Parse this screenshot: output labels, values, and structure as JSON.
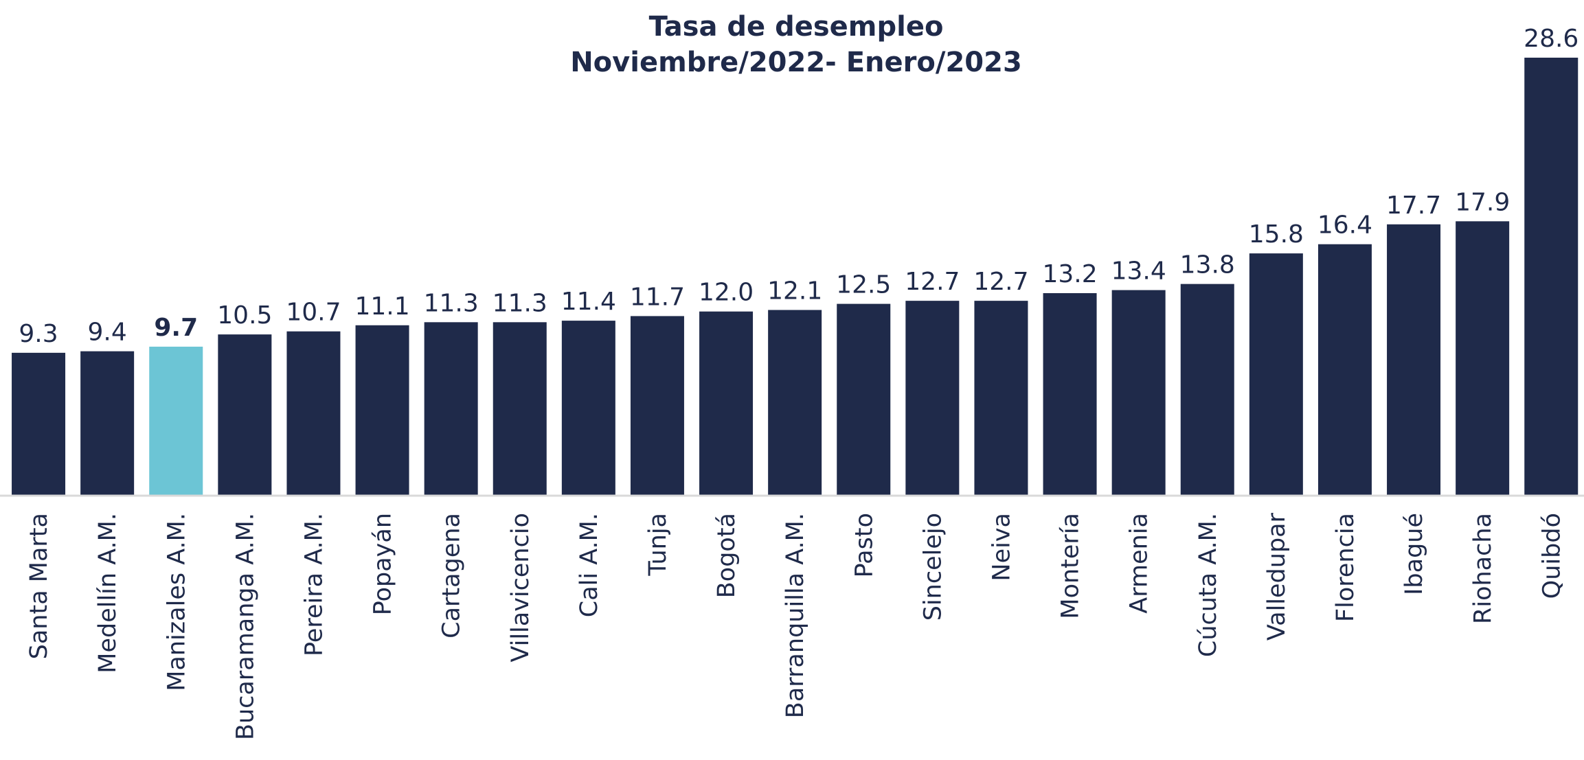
{
  "chart_data": {
    "type": "bar",
    "title": "Tasa de desempleo",
    "subtitle": "Noviembre/2022- Enero/2023",
    "categories": [
      "Santa Marta",
      "Medellín A.M.",
      "Manizales A.M.",
      "Bucaramanga A.M.",
      "Pereira A.M.",
      "Popayán",
      "Cartagena",
      "Villavicencio",
      "Cali A.M.",
      "Tunja",
      "Bogotá",
      "Barranquilla A.M.",
      "Pasto",
      "Sincelejo",
      "Neiva",
      "Montería",
      "Armenia",
      "Cúcuta A.M.",
      "Valledupar",
      "Florencia",
      "Ibagué",
      "Riohacha",
      "Quibdó"
    ],
    "values": [
      9.3,
      9.4,
      9.7,
      10.5,
      10.7,
      11.1,
      11.3,
      11.3,
      11.4,
      11.7,
      12.0,
      12.1,
      12.5,
      12.7,
      12.7,
      13.2,
      13.4,
      13.8,
      15.8,
      16.4,
      17.7,
      17.9,
      28.6
    ],
    "value_labels": [
      "9.3",
      "9.4",
      "9.7",
      "10.5",
      "10.7",
      "11.1",
      "11.3",
      "11.3",
      "11.4",
      "11.7",
      "12.0",
      "12.1",
      "12.5",
      "12.7",
      "12.7",
      "13.2",
      "13.4",
      "13.8",
      "15.8",
      "16.4",
      "17.7",
      "17.9",
      "28.6"
    ],
    "color": "#1f2a4a",
    "colors": [
      "#1f2a4a",
      "#1f2a4a",
      "#6cc5d5",
      "#1f2a4a",
      "#1f2a4a",
      "#1f2a4a",
      "#1f2a4a",
      "#1f2a4a",
      "#1f2a4a",
      "#1f2a4a",
      "#1f2a4a",
      "#1f2a4a",
      "#1f2a4a",
      "#1f2a4a",
      "#1f2a4a",
      "#1f2a4a",
      "#1f2a4a",
      "#1f2a4a",
      "#1f2a4a",
      "#1f2a4a",
      "#1f2a4a",
      "#1f2a4a",
      "#1f2a4a"
    ],
    "ylim": [
      0,
      28.6
    ]
  }
}
